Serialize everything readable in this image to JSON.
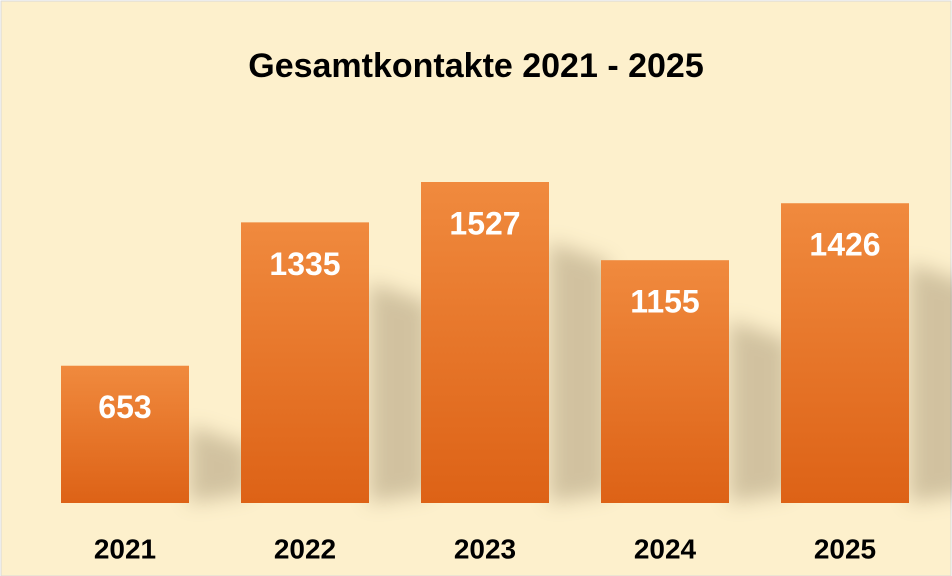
{
  "chart_data": {
    "type": "bar",
    "title": "Gesamtkontakte 2021 - 2025",
    "categories": [
      "2021",
      "2022",
      "2023",
      "2024",
      "2025"
    ],
    "values": [
      653,
      1335,
      1527,
      1155,
      1426
    ],
    "color": "#eb7a2e"
  }
}
